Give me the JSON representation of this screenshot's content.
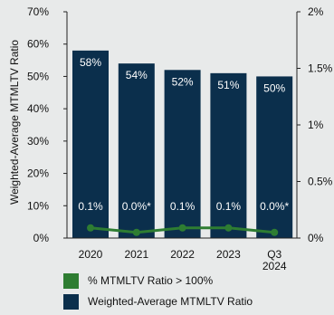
{
  "chart_data": {
    "type": "bar",
    "categories": [
      "2020",
      "2021",
      "2022",
      "2023",
      "Q3\n2024"
    ],
    "ylabel": "Weighted-Average MTMLTV Ratio",
    "ylim": [
      0,
      70
    ],
    "yticks": [
      "0%",
      "10%",
      "20%",
      "30%",
      "40%",
      "50%",
      "60%",
      "70%"
    ],
    "y2lim": [
      0,
      2
    ],
    "y2ticks": [
      "0%",
      "0.5%",
      "1%",
      "1.5%",
      "2%"
    ],
    "series": [
      {
        "name": "Weighted-Average MTMLTV Ratio",
        "type": "bar",
        "axis": "left",
        "color": "#0b2f4c",
        "values": [
          58,
          54,
          52,
          51,
          50
        ],
        "labels": [
          "58%",
          "54%",
          "52%",
          "51%",
          "50%"
        ]
      },
      {
        "name": "% MTMLTV Ratio > 100%",
        "type": "line",
        "axis": "right",
        "color": "#2e7d32",
        "values": [
          0.1,
          0.0,
          0.1,
          0.1,
          0.0
        ],
        "labels": [
          "0.1%",
          "0.0%*",
          "0.1%",
          "0.1%",
          "0.0%*"
        ]
      }
    ],
    "grid": false,
    "legend_position": "bottom"
  }
}
